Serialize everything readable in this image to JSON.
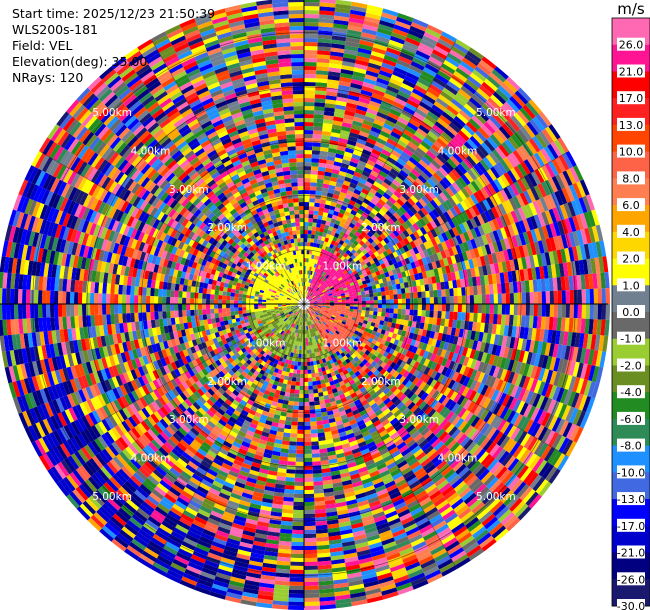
{
  "info": {
    "start_time": "Start time: 2025/12/23 21:50:39",
    "instrument": "WLS200s-181",
    "field": "Field: VEL",
    "elevation": "Elevation(deg): 35.00",
    "nrays": "NRays: 120"
  },
  "chart_data": {
    "type": "heatmap",
    "projection": "polar-ppi",
    "field": "VEL",
    "nrays": 120,
    "max_range_km": 5.6,
    "range_rings_km": [
      1.0,
      2.0,
      3.0,
      4.0,
      5.0
    ],
    "range_ring_labels": [
      "1.00km",
      "2.00km",
      "3.00km",
      "4.00km",
      "5.00km"
    ],
    "colorbar": {
      "unit": "m/s",
      "tick_labels": [
        "26.0",
        "21.0",
        "17.0",
        "13.0",
        "10.0",
        "8.0",
        "6.0",
        "4.0",
        "2.0",
        "1.0",
        "0.0",
        "-1.0",
        "-2.0",
        "-4.0",
        "-6.0",
        "-8.0",
        "-10.0",
        "-13.0",
        "-17.0",
        "-21.0",
        "-26.0",
        "-30.0"
      ],
      "bounds": [
        30,
        26,
        21,
        17,
        13,
        10,
        8,
        6,
        4,
        2,
        1,
        0,
        -1,
        -2,
        -4,
        -6,
        -8,
        -10,
        -13,
        -17,
        -21,
        -26,
        -30
      ],
      "colors": [
        "#ff69b4",
        "#ff1493",
        "#ff0000",
        "#ff2020",
        "#ff4500",
        "#ff6347",
        "#ff7f50",
        "#ffa500",
        "#ffd700",
        "#ffff00",
        "#708090",
        "#696969",
        "#9acd32",
        "#6b8e23",
        "#228b22",
        "#2e8b57",
        "#1e90ff",
        "#4169e1",
        "#0000ff",
        "#0000cd",
        "#000080",
        "#191970"
      ]
    },
    "grid": true
  }
}
